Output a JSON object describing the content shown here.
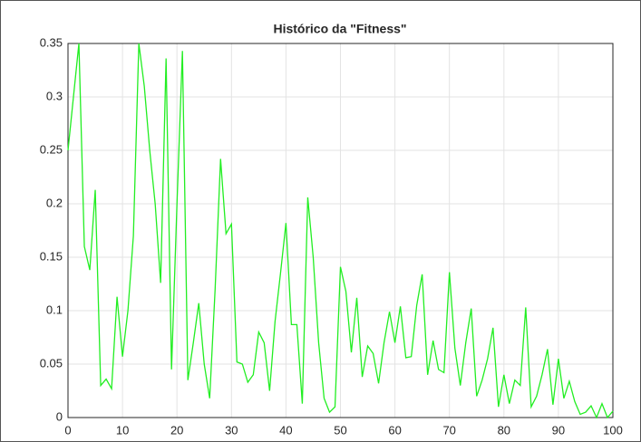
{
  "chart_data": {
    "type": "line",
    "title": "Histórico da \"Fitness\"",
    "x": [
      0,
      1,
      2,
      3,
      4,
      5,
      6,
      7,
      8,
      9,
      10,
      11,
      12,
      13,
      14,
      15,
      16,
      17,
      18,
      19,
      20,
      21,
      22,
      23,
      24,
      25,
      26,
      27,
      28,
      29,
      30,
      31,
      32,
      33,
      34,
      35,
      36,
      37,
      38,
      39,
      40,
      41,
      42,
      43,
      44,
      45,
      46,
      47,
      48,
      49,
      50,
      51,
      52,
      53,
      54,
      55,
      56,
      57,
      58,
      59,
      60,
      61,
      62,
      63,
      64,
      65,
      66,
      67,
      68,
      69,
      70,
      71,
      72,
      73,
      74,
      75,
      76,
      77,
      78,
      79,
      80,
      81,
      82,
      83,
      84,
      85,
      86,
      87,
      88,
      89,
      90,
      91,
      92,
      93,
      94,
      95,
      96,
      97,
      98,
      99,
      100
    ],
    "series": [
      {
        "color": "#22ee22",
        "values": [
          0.25,
          0.3,
          0.35,
          0.16,
          0.138,
          0.213,
          0.03,
          0.036,
          0.027,
          0.113,
          0.057,
          0.1,
          0.17,
          0.35,
          0.31,
          0.25,
          0.2,
          0.126,
          0.336,
          0.045,
          0.2,
          0.343,
          0.035,
          0.07,
          0.107,
          0.05,
          0.018,
          0.12,
          0.242,
          0.172,
          0.181,
          0.052,
          0.05,
          0.033,
          0.04,
          0.08,
          0.07,
          0.025,
          0.09,
          0.135,
          0.182,
          0.087,
          0.087,
          0.013,
          0.206,
          0.15,
          0.07,
          0.018,
          0.005,
          0.01,
          0.141,
          0.118,
          0.061,
          0.112,
          0.038,
          0.067,
          0.06,
          0.032,
          0.07,
          0.099,
          0.07,
          0.104,
          0.056,
          0.057,
          0.105,
          0.134,
          0.04,
          0.072,
          0.045,
          0.042,
          0.136,
          0.065,
          0.03,
          0.07,
          0.102,
          0.02,
          0.035,
          0.055,
          0.084,
          0.01,
          0.04,
          0.013,
          0.035,
          0.03,
          0.103,
          0.01,
          0.02,
          0.04,
          0.064,
          0.012,
          0.055,
          0.018,
          0.034,
          0.015,
          0.003,
          0.005,
          0.011,
          0.0,
          0.013,
          0.0,
          0.006
        ]
      }
    ],
    "xlim": [
      0,
      100
    ],
    "xticks": [
      0,
      10,
      20,
      30,
      40,
      50,
      60,
      70,
      80,
      90,
      100
    ],
    "ylim": [
      0,
      0.35
    ],
    "yticks": [
      0,
      0.05,
      0.1,
      0.15,
      0.2,
      0.25,
      0.3,
      0.35
    ],
    "grid": true
  }
}
